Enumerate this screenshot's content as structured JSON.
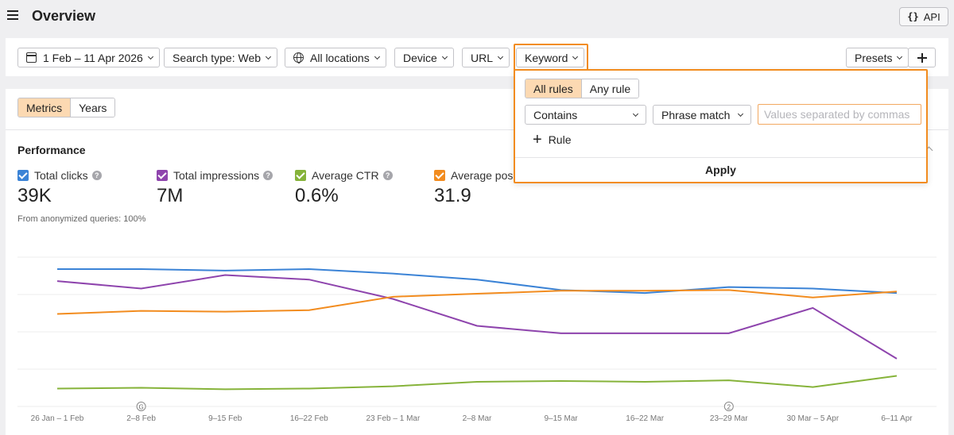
{
  "header": {
    "title": "Overview",
    "api_label": "API",
    "api_icon": "braces-icon"
  },
  "filters": {
    "date_range": "1 Feb – 11 Apr 2026",
    "search_type": "Search type: Web",
    "locations": "All locations",
    "device": "Device",
    "url": "URL",
    "keyword": "Keyword",
    "presets": "Presets"
  },
  "keyword_dropdown": {
    "match_modes": [
      "All rules",
      "Any rule"
    ],
    "selected_match_mode": "All rules",
    "condition": "Contains",
    "match_type": "Phrase match",
    "values_placeholder": "Values separated by commas",
    "add_rule_label": "Rule",
    "apply_label": "Apply"
  },
  "view_toggle": {
    "options": [
      "Metrics",
      "Years"
    ],
    "selected": "Metrics"
  },
  "performance": {
    "title": "Performance",
    "metrics": [
      {
        "label": "Total clicks",
        "value": "39K",
        "color": "#3b83d6",
        "checked": true
      },
      {
        "label": "Total impressions",
        "value": "7M",
        "color": "#8e44ad",
        "checked": true
      },
      {
        "label": "Average CTR",
        "value": "0.6%",
        "color": "#86b33a",
        "checked": true
      },
      {
        "label": "Average posi",
        "value": "31.9",
        "color": "#f28c1f",
        "checked": true
      }
    ],
    "anonymized_note": "From anonymized queries: 100%"
  },
  "chart_data": {
    "type": "line",
    "categories": [
      "26 Jan – 1 Feb",
      "2–8 Feb",
      "9–15 Feb",
      "16–22 Feb",
      "23 Feb – 1 Mar",
      "2–8 Mar",
      "9–15 Mar",
      "16–22 Mar",
      "23–29 Mar",
      "30 Mar – 5 Apr",
      "6–11 Apr"
    ],
    "annotations": [
      {
        "category": "2–8 Feb",
        "label": "G"
      },
      {
        "category": "23–29 Mar",
        "label": "2"
      }
    ],
    "series": [
      {
        "name": "Total clicks",
        "color": "#3b83d6",
        "values": [
          0.92,
          0.92,
          0.91,
          0.92,
          0.89,
          0.85,
          0.78,
          0.76,
          0.8,
          0.79,
          0.76
        ]
      },
      {
        "name": "Total impressions",
        "color": "#8e44ad",
        "values": [
          0.84,
          0.79,
          0.88,
          0.85,
          0.72,
          0.54,
          0.49,
          0.49,
          0.49,
          0.66,
          0.32
        ]
      },
      {
        "name": "Average CTR",
        "color": "#86b33a",
        "values": [
          0.12,
          0.125,
          0.115,
          0.12,
          0.135,
          0.165,
          0.17,
          0.165,
          0.175,
          0.13,
          0.205
        ]
      },
      {
        "name": "Average posi",
        "color": "#f28c1f",
        "values": [
          0.62,
          0.64,
          0.635,
          0.645,
          0.735,
          0.755,
          0.775,
          0.775,
          0.78,
          0.73,
          0.77
        ]
      }
    ],
    "grid": true,
    "legend": "none"
  }
}
